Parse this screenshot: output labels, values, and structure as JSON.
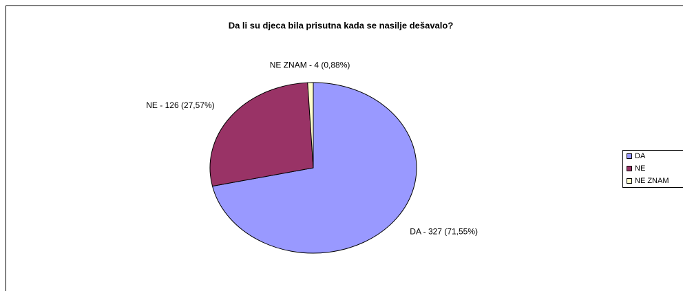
{
  "chart_data": {
    "type": "pie",
    "title": "Da li su djeca bila prisutna kada se nasilje dešavalo?",
    "categories": [
      "DA",
      "NE",
      "NE ZNAM"
    ],
    "values": [
      327,
      126,
      4
    ],
    "value_labels": [
      "DA - 327 (71,55%)",
      "NE - 126 (27,57%)",
      "NE ZNAM - 4 (0,88%)"
    ],
    "colors": [
      "#9999ff",
      "#993366",
      "#ffffcc"
    ],
    "legend": "right"
  }
}
